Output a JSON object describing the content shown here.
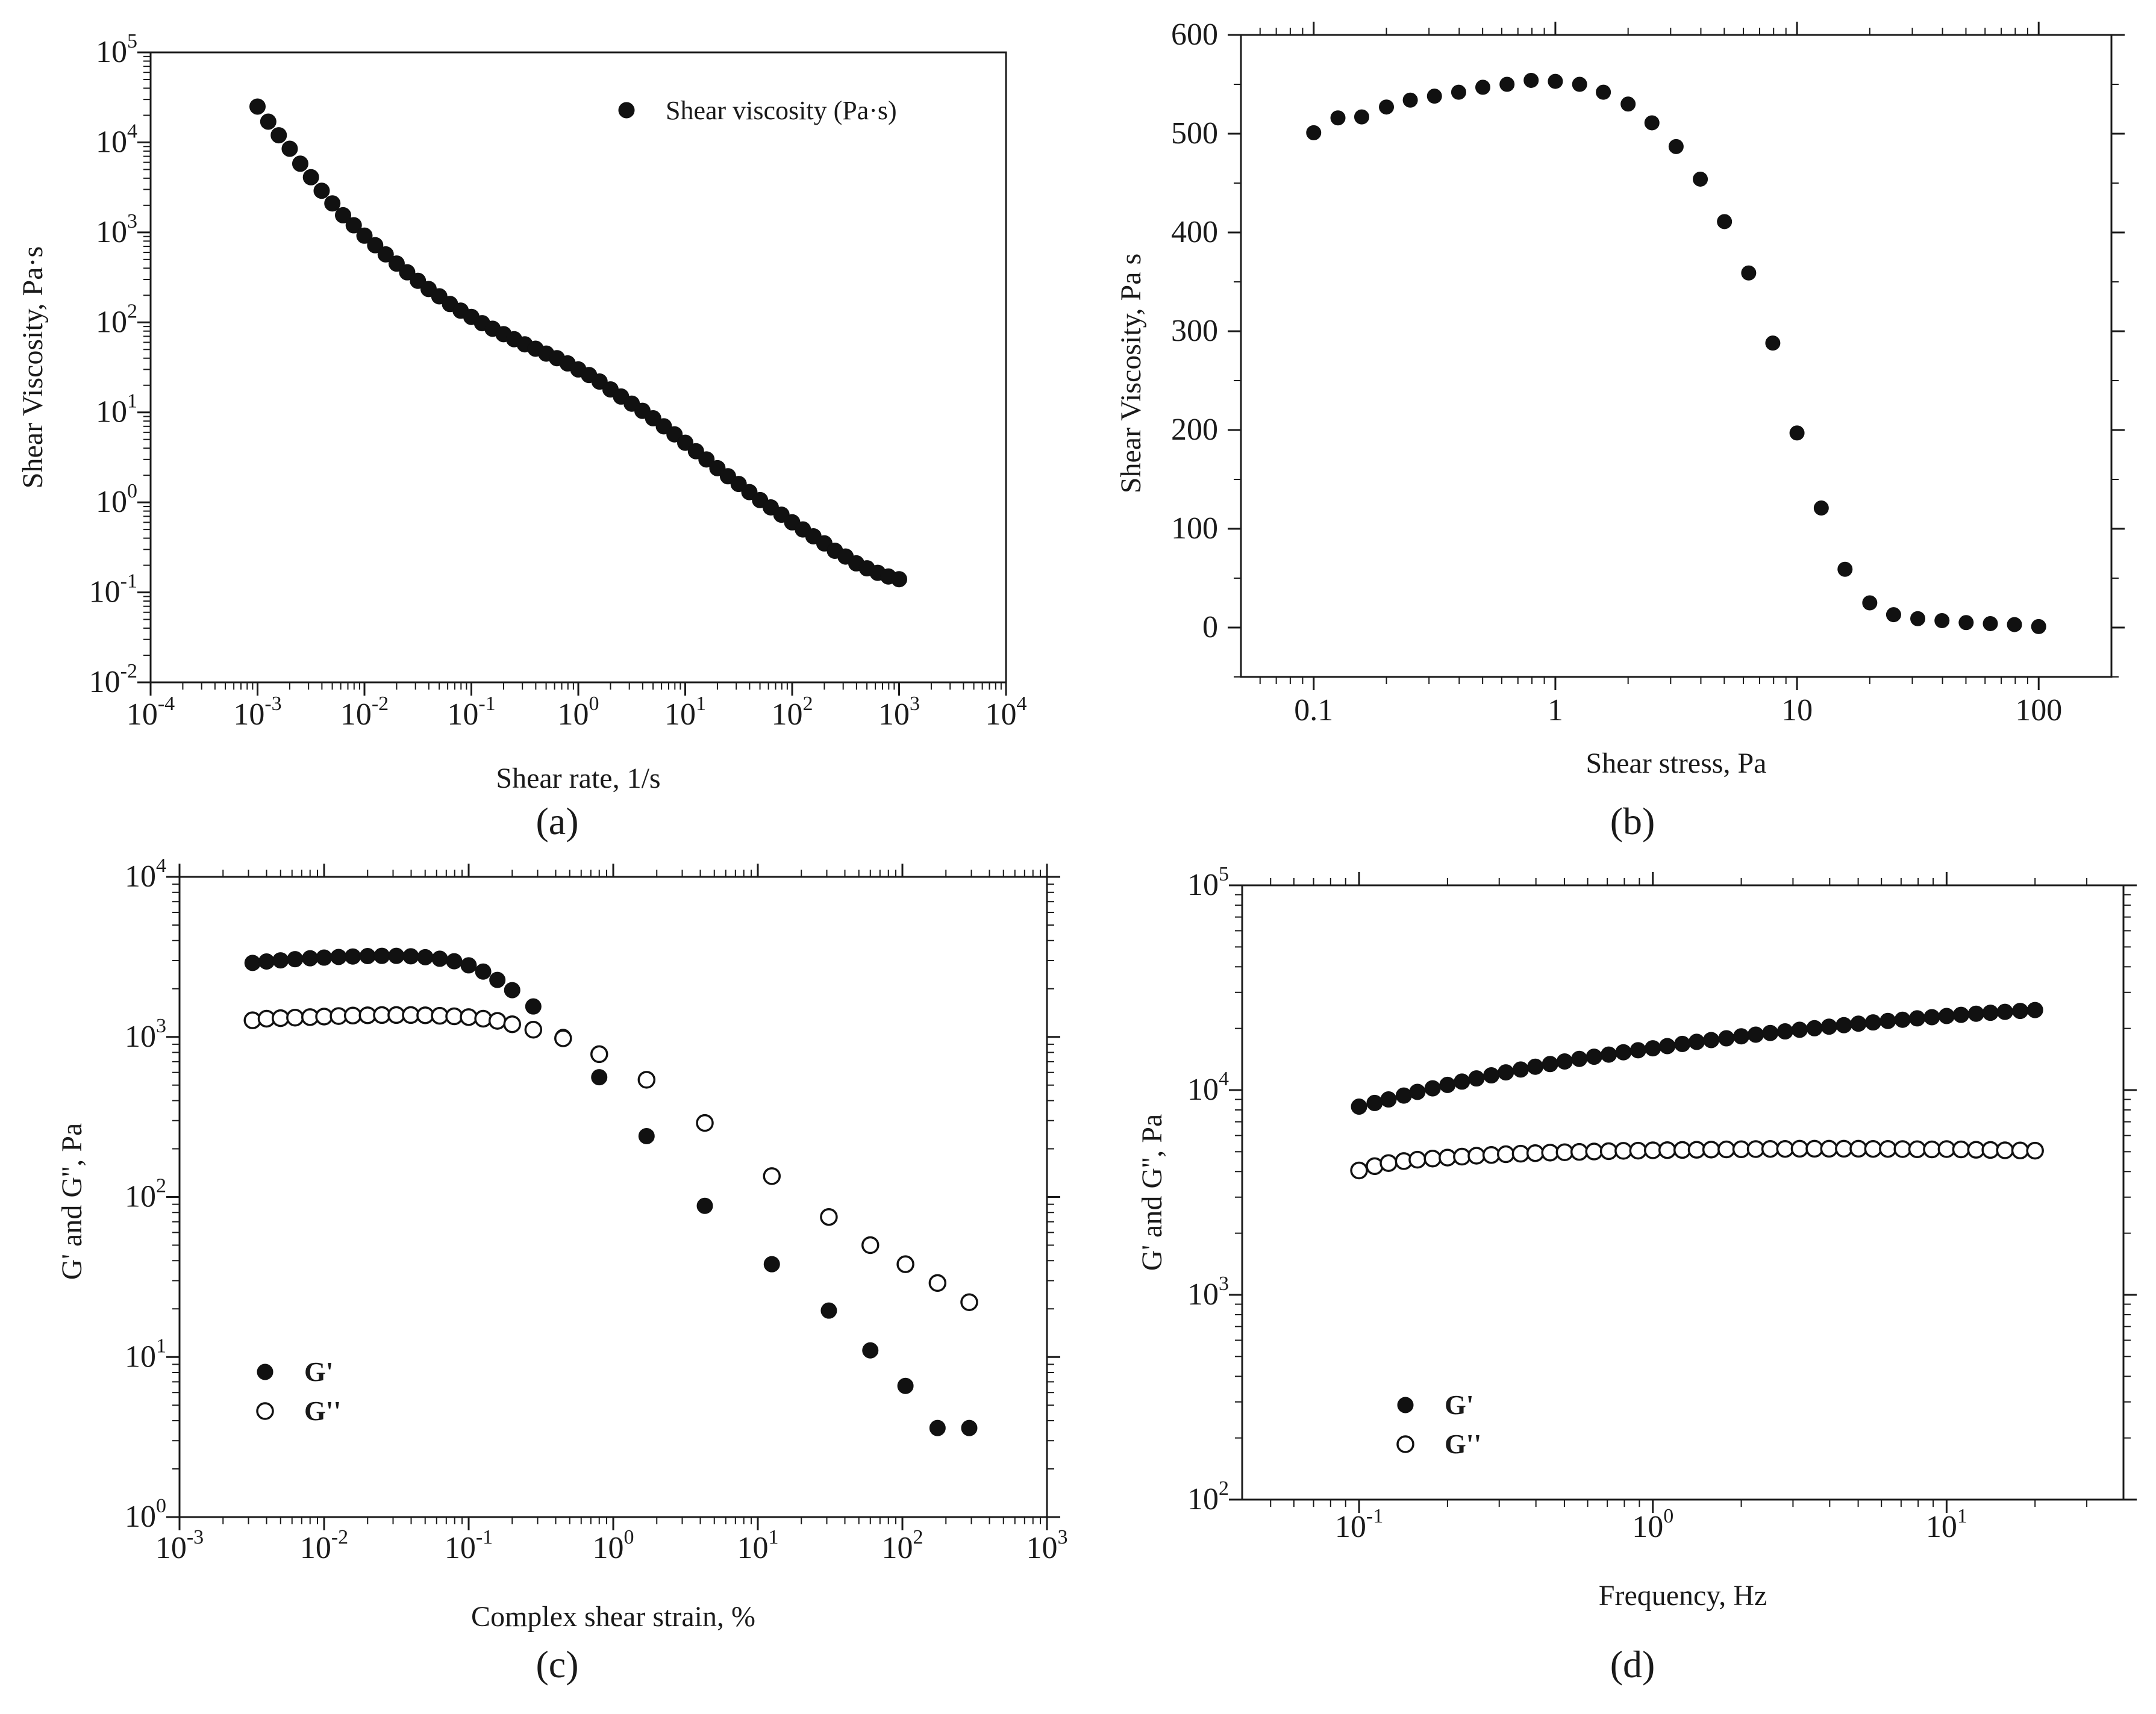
{
  "chart_data": [
    {
      "type": "scatter",
      "panel": "(a)",
      "xscale": "log",
      "yscale": "log",
      "xlabel": "Shear rate, 1/s",
      "ylabel": "Shear Viscosity, Pa·s",
      "xlim": [
        0.0001,
        10000
      ],
      "ylim": [
        0.01,
        100000
      ],
      "xticks": [
        {
          "v": 0.0001,
          "b": "10",
          "e": "-4"
        },
        {
          "v": 0.001,
          "b": "10",
          "e": "-3"
        },
        {
          "v": 0.01,
          "b": "10",
          "e": "-2"
        },
        {
          "v": 0.1,
          "b": "10",
          "e": "-1"
        },
        {
          "v": 1,
          "b": "10",
          "e": "0"
        },
        {
          "v": 10,
          "b": "10",
          "e": "1"
        },
        {
          "v": 100,
          "b": "10",
          "e": "2"
        },
        {
          "v": 1000,
          "b": "10",
          "e": "3"
        },
        {
          "v": 10000,
          "b": "10",
          "e": "4"
        }
      ],
      "yticks": [
        {
          "v": 0.01,
          "b": "10",
          "e": "-2"
        },
        {
          "v": 0.1,
          "b": "10",
          "e": "-1"
        },
        {
          "v": 1,
          "b": "10",
          "e": "0"
        },
        {
          "v": 10,
          "b": "10",
          "e": "1"
        },
        {
          "v": 100,
          "b": "10",
          "e": "2"
        },
        {
          "v": 1000,
          "b": "10",
          "e": "3"
        },
        {
          "v": 10000,
          "b": "10",
          "e": "4"
        },
        {
          "v": 100000,
          "b": "10",
          "e": "5"
        }
      ],
      "legend": {
        "position": "top-right",
        "entries": [
          "Shear viscosity (Pa·s)"
        ]
      },
      "series": [
        {
          "name": "Shear viscosity (Pa·s)",
          "marker": "filled",
          "x": [
            0.001,
            0.00126,
            0.00158,
            0.002,
            0.00251,
            0.00316,
            0.00398,
            0.00501,
            0.00631,
            0.00794,
            0.01,
            0.0126,
            0.0158,
            0.02,
            0.0251,
            0.0316,
            0.0398,
            0.0501,
            0.0631,
            0.0794,
            0.1,
            0.126,
            0.158,
            0.2,
            0.251,
            0.316,
            0.398,
            0.501,
            0.631,
            0.794,
            1,
            1.26,
            1.58,
            2,
            2.51,
            3.16,
            3.98,
            5.01,
            6.31,
            7.94,
            10,
            12.6,
            15.8,
            20,
            25.1,
            31.6,
            39.8,
            50.1,
            63.1,
            79.4,
            100,
            126,
            158,
            200,
            251,
            316,
            398,
            501,
            631,
            794,
            1000
          ],
          "y": [
            25000,
            17000,
            12000,
            8500,
            5800,
            4100,
            2900,
            2100,
            1550,
            1200,
            920,
            720,
            570,
            450,
            360,
            290,
            235,
            195,
            160,
            135,
            115,
            98,
            85,
            74,
            65,
            57,
            51,
            45,
            40,
            35,
            30,
            26,
            22,
            18,
            15,
            12.5,
            10.4,
            8.6,
            7,
            5.7,
            4.6,
            3.7,
            3,
            2.4,
            1.95,
            1.6,
            1.3,
            1.06,
            0.88,
            0.73,
            0.6,
            0.5,
            0.42,
            0.35,
            0.29,
            0.25,
            0.21,
            0.185,
            0.165,
            0.15,
            0.14
          ]
        }
      ]
    },
    {
      "type": "scatter",
      "panel": "(b)",
      "xscale": "log",
      "yscale": "linear",
      "xlabel": "Shear stress, Pa",
      "ylabel": "Shear Viscosity, Pa s",
      "xlim": [
        0.05,
        200
      ],
      "ylim": [
        -50,
        600
      ],
      "xticks": [
        {
          "v": 0.1,
          "label": "0.1"
        },
        {
          "v": 1,
          "label": "1"
        },
        {
          "v": 10,
          "label": "10"
        },
        {
          "v": 100,
          "label": "100"
        }
      ],
      "yticks": [
        {
          "v": 0,
          "label": "0"
        },
        {
          "v": 100,
          "label": "100"
        },
        {
          "v": 200,
          "label": "200"
        },
        {
          "v": 300,
          "label": "300"
        },
        {
          "v": 400,
          "label": "400"
        },
        {
          "v": 500,
          "label": "500"
        },
        {
          "v": 600,
          "label": "600"
        }
      ],
      "series": [
        {
          "name": "Shear Viscosity",
          "marker": "filled",
          "x": [
            0.1,
            0.126,
            0.158,
            0.2,
            0.251,
            0.316,
            0.398,
            0.501,
            0.631,
            0.794,
            1,
            1.26,
            1.58,
            2,
            2.51,
            3.16,
            3.98,
            5.01,
            6.31,
            7.94,
            10,
            12.6,
            15.8,
            20,
            25.1,
            31.6,
            39.8,
            50.1,
            63.1,
            79.4,
            100
          ],
          "y": [
            501,
            516,
            517,
            527,
            534,
            538,
            542,
            547,
            550,
            554,
            553,
            550,
            542,
            530,
            511,
            487,
            454,
            411,
            359,
            288,
            197,
            121,
            59,
            25,
            13,
            9,
            7,
            5,
            4,
            3,
            1
          ]
        }
      ]
    },
    {
      "type": "scatter",
      "panel": "(c)",
      "xscale": "log",
      "yscale": "log",
      "xlabel": "Complex shear strain, %",
      "ylabel": "G' and G'', Pa",
      "xlim": [
        0.001,
        1000
      ],
      "ylim": [
        1,
        10000
      ],
      "xticks": [
        {
          "v": 0.001,
          "b": "10",
          "e": "-3"
        },
        {
          "v": 0.01,
          "b": "10",
          "e": "-2"
        },
        {
          "v": 0.1,
          "b": "10",
          "e": "-1"
        },
        {
          "v": 1,
          "b": "10",
          "e": "0"
        },
        {
          "v": 10,
          "b": "10",
          "e": "1"
        },
        {
          "v": 100,
          "b": "10",
          "e": "2"
        },
        {
          "v": 1000,
          "b": "10",
          "e": "3"
        }
      ],
      "yticks": [
        {
          "v": 1,
          "b": "10",
          "e": "0"
        },
        {
          "v": 10,
          "b": "10",
          "e": "1"
        },
        {
          "v": 100,
          "b": "10",
          "e": "2"
        },
        {
          "v": 1000,
          "b": "10",
          "e": "3"
        },
        {
          "v": 10000,
          "b": "10",
          "e": "4"
        }
      ],
      "legend": {
        "position": "bottom-left",
        "entries": [
          "G'",
          "G''"
        ]
      },
      "series": [
        {
          "name": "G'",
          "marker": "filled",
          "x": [
            0.0032,
            0.004,
            0.005,
            0.0063,
            0.008,
            0.01,
            0.0126,
            0.0158,
            0.02,
            0.0251,
            0.0316,
            0.0398,
            0.0501,
            0.0631,
            0.0794,
            0.1,
            0.126,
            0.158,
            0.2,
            0.28,
            0.45,
            0.8,
            1.7,
            4.3,
            12.5,
            31,
            60,
            105,
            175,
            290
          ],
          "y": [
            2900,
            2960,
            3010,
            3060,
            3100,
            3130,
            3160,
            3180,
            3200,
            3210,
            3210,
            3190,
            3150,
            3080,
            2970,
            2800,
            2560,
            2270,
            1960,
            1550,
            1000,
            560,
            240,
            88,
            38,
            19.5,
            11,
            6.6,
            3.6,
            3.6
          ]
        },
        {
          "name": "G''",
          "marker": "open",
          "x": [
            0.0032,
            0.004,
            0.005,
            0.0063,
            0.008,
            0.01,
            0.0126,
            0.0158,
            0.02,
            0.0251,
            0.0316,
            0.0398,
            0.0501,
            0.0631,
            0.0794,
            0.1,
            0.126,
            0.158,
            0.2,
            0.28,
            0.45,
            0.8,
            1.7,
            4.3,
            12.5,
            31,
            60,
            105,
            175,
            290
          ],
          "y": [
            1270,
            1300,
            1310,
            1320,
            1330,
            1340,
            1350,
            1360,
            1365,
            1370,
            1370,
            1370,
            1365,
            1355,
            1345,
            1330,
            1300,
            1260,
            1200,
            1110,
            980,
            780,
            540,
            290,
            135,
            75,
            50,
            38,
            29,
            22
          ]
        }
      ]
    },
    {
      "type": "scatter",
      "panel": "(d)",
      "xscale": "log",
      "yscale": "log",
      "xlabel": "Frequency, Hz",
      "ylabel": "G' and G'', Pa",
      "xlim": [
        0.04,
        40
      ],
      "ylim": [
        100,
        100000
      ],
      "xticks": [
        {
          "v": 0.1,
          "b": "10",
          "e": "-1"
        },
        {
          "v": 1,
          "b": "10",
          "e": "0"
        },
        {
          "v": 10,
          "b": "10",
          "e": "1"
        }
      ],
      "yticks": [
        {
          "v": 100,
          "b": "10",
          "e": "2"
        },
        {
          "v": 1000,
          "b": "10",
          "e": "3"
        },
        {
          "v": 10000,
          "b": "10",
          "e": "4"
        },
        {
          "v": 100000,
          "b": "10",
          "e": "5"
        }
      ],
      "legend": {
        "position": "bottom-left",
        "entries": [
          "G'",
          "G''"
        ]
      },
      "series": [
        {
          "name": "G'",
          "marker": "filled",
          "x": [
            0.1,
            0.113,
            0.126,
            0.142,
            0.158,
            0.178,
            0.2,
            0.224,
            0.251,
            0.282,
            0.316,
            0.355,
            0.398,
            0.447,
            0.501,
            0.562,
            0.631,
            0.708,
            0.794,
            0.891,
            1,
            1.12,
            1.26,
            1.41,
            1.58,
            1.78,
            2,
            2.24,
            2.51,
            2.82,
            3.16,
            3.55,
            3.98,
            4.47,
            5.01,
            5.62,
            6.31,
            7.08,
            7.94,
            8.91,
            10,
            11.2,
            12.6,
            14.1,
            15.8,
            17.8,
            20
          ],
          "y": [
            8300,
            8650,
            9000,
            9400,
            9800,
            10200,
            10600,
            11000,
            11400,
            11800,
            12200,
            12600,
            13000,
            13400,
            13800,
            14200,
            14550,
            14900,
            15300,
            15650,
            16000,
            16400,
            16800,
            17200,
            17550,
            17900,
            18300,
            18650,
            19000,
            19350,
            19700,
            20050,
            20400,
            20750,
            21100,
            21400,
            21750,
            22050,
            22400,
            22700,
            23000,
            23300,
            23600,
            23850,
            24100,
            24350,
            24600
          ]
        },
        {
          "name": "G''",
          "marker": "open",
          "x": [
            0.1,
            0.113,
            0.126,
            0.142,
            0.158,
            0.178,
            0.2,
            0.224,
            0.251,
            0.282,
            0.316,
            0.355,
            0.398,
            0.447,
            0.501,
            0.562,
            0.631,
            0.708,
            0.794,
            0.891,
            1,
            1.12,
            1.26,
            1.41,
            1.58,
            1.78,
            2,
            2.24,
            2.51,
            2.82,
            3.16,
            3.55,
            3.98,
            4.47,
            5.01,
            5.62,
            6.31,
            7.08,
            7.94,
            8.91,
            10,
            11.2,
            12.6,
            14.1,
            15.8,
            17.8,
            20
          ],
          "y": [
            4050,
            4250,
            4400,
            4500,
            4570,
            4630,
            4680,
            4730,
            4780,
            4820,
            4860,
            4890,
            4920,
            4950,
            4970,
            4990,
            5010,
            5030,
            5050,
            5060,
            5080,
            5090,
            5100,
            5110,
            5120,
            5130,
            5140,
            5150,
            5160,
            5160,
            5170,
            5170,
            5170,
            5170,
            5170,
            5160,
            5160,
            5150,
            5140,
            5130,
            5150,
            5130,
            5110,
            5100,
            5080,
            5070,
            5060
          ]
        }
      ]
    }
  ]
}
